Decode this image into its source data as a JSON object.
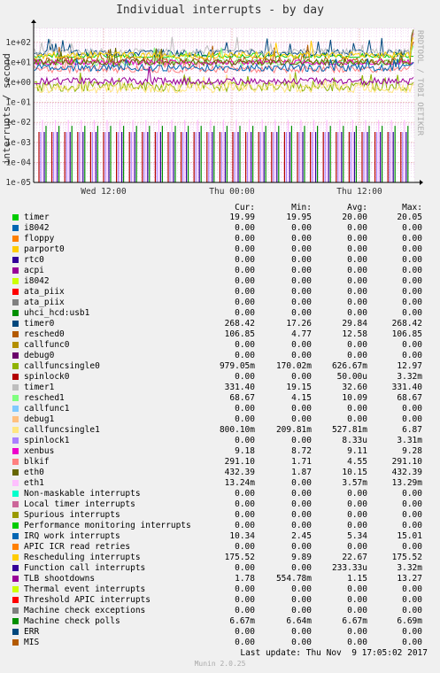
{
  "title": "Individual interrupts - by day",
  "watermark": "RRDTOOL / TOBI OETIKER",
  "footer": {
    "last_update_label": "Last update:",
    "last_update_value": "Thu Nov  9 17:05:02 2017",
    "version": "Munin 2.0.25"
  },
  "legend_header": {
    "cur": "Cur:",
    "min": "Min:",
    "avg": "Avg:",
    "max": "Max:"
  },
  "chart_data": {
    "type": "line",
    "title": "Individual interrupts - by day",
    "ylabel": "interrupts / second",
    "xlabel": "",
    "y_scale": "log",
    "ylim": [
      1e-05,
      500
    ],
    "y_ticks": [
      "1e-05",
      "1e-04",
      "1e-03",
      "1e-02",
      "1e-01",
      "1e+00",
      "1e+01",
      "1e+02"
    ],
    "x_ticks": [
      "Wed 12:00",
      "Thu 00:00",
      "Thu 12:00"
    ],
    "grid": true,
    "series": [
      {
        "name": "timer",
        "color": "#00cc00",
        "cur": "19.99",
        "min": "19.95",
        "avg": "20.00",
        "max": "20.05"
      },
      {
        "name": "i8042",
        "color": "#0066b3",
        "cur": "0.00",
        "min": "0.00",
        "avg": "0.00",
        "max": "0.00"
      },
      {
        "name": "floppy",
        "color": "#ff8000",
        "cur": "0.00",
        "min": "0.00",
        "avg": "0.00",
        "max": "0.00"
      },
      {
        "name": "parport0",
        "color": "#ffcc00",
        "cur": "0.00",
        "min": "0.00",
        "avg": "0.00",
        "max": "0.00"
      },
      {
        "name": "rtc0",
        "color": "#330099",
        "cur": "0.00",
        "min": "0.00",
        "avg": "0.00",
        "max": "0.00"
      },
      {
        "name": "acpi",
        "color": "#990099",
        "cur": "0.00",
        "min": "0.00",
        "avg": "0.00",
        "max": "0.00"
      },
      {
        "name": "i8042",
        "color": "#ccff00",
        "cur": "0.00",
        "min": "0.00",
        "avg": "0.00",
        "max": "0.00"
      },
      {
        "name": "ata_piix",
        "color": "#ff0000",
        "cur": "0.00",
        "min": "0.00",
        "avg": "0.00",
        "max": "0.00"
      },
      {
        "name": "ata_piix",
        "color": "#808080",
        "cur": "0.00",
        "min": "0.00",
        "avg": "0.00",
        "max": "0.00"
      },
      {
        "name": "uhci_hcd:usb1",
        "color": "#008f00",
        "cur": "0.00",
        "min": "0.00",
        "avg": "0.00",
        "max": "0.00"
      },
      {
        "name": "timer0",
        "color": "#00487d",
        "cur": "268.42",
        "min": "17.26",
        "avg": "29.84",
        "max": "268.42"
      },
      {
        "name": "resched0",
        "color": "#b35a00",
        "cur": "106.85",
        "min": "4.77",
        "avg": "12.58",
        "max": "106.85"
      },
      {
        "name": "callfunc0",
        "color": "#b38f00",
        "cur": "0.00",
        "min": "0.00",
        "avg": "0.00",
        "max": "0.00"
      },
      {
        "name": "debug0",
        "color": "#6b006b",
        "cur": "0.00",
        "min": "0.00",
        "avg": "0.00",
        "max": "0.00"
      },
      {
        "name": "callfuncsingle0",
        "color": "#8fb300",
        "cur": "979.05m",
        "min": "170.02m",
        "avg": "626.67m",
        "max": "12.97"
      },
      {
        "name": "spinlock0",
        "color": "#b30000",
        "cur": "0.00",
        "min": "0.00",
        "avg": "50.00u",
        "max": "3.32m"
      },
      {
        "name": "timer1",
        "color": "#bebebe",
        "cur": "331.40",
        "min": "19.15",
        "avg": "32.60",
        "max": "331.40"
      },
      {
        "name": "resched1",
        "color": "#80ff80",
        "cur": "68.67",
        "min": "4.15",
        "avg": "10.09",
        "max": "68.67"
      },
      {
        "name": "callfunc1",
        "color": "#80c9ff",
        "cur": "0.00",
        "min": "0.00",
        "avg": "0.00",
        "max": "0.00"
      },
      {
        "name": "debug1",
        "color": "#ffc080",
        "cur": "0.00",
        "min": "0.00",
        "avg": "0.00",
        "max": "0.00"
      },
      {
        "name": "callfuncsingle1",
        "color": "#ffe680",
        "cur": "800.10m",
        "min": "209.81m",
        "avg": "527.81m",
        "max": "6.87"
      },
      {
        "name": "spinlock1",
        "color": "#aa80ff",
        "cur": "0.00",
        "min": "0.00",
        "avg": "8.33u",
        "max": "3.31m"
      },
      {
        "name": "xenbus",
        "color": "#ee00cc",
        "cur": "9.18",
        "min": "8.72",
        "avg": "9.11",
        "max": "9.28"
      },
      {
        "name": "blkif",
        "color": "#ff8080",
        "cur": "291.10",
        "min": "1.71",
        "avg": "4.55",
        "max": "291.10"
      },
      {
        "name": "eth0",
        "color": "#666600",
        "cur": "432.39",
        "min": "1.87",
        "avg": "10.15",
        "max": "432.39"
      },
      {
        "name": "eth1",
        "color": "#ffbfff",
        "cur": "13.24m",
        "min": "0.00",
        "avg": "3.57m",
        "max": "13.29m"
      },
      {
        "name": "Non-maskable interrupts",
        "color": "#00ffcc",
        "cur": "0.00",
        "min": "0.00",
        "avg": "0.00",
        "max": "0.00"
      },
      {
        "name": "Local timer interrupts",
        "color": "#cc6699",
        "cur": "0.00",
        "min": "0.00",
        "avg": "0.00",
        "max": "0.00"
      },
      {
        "name": "Spurious interrupts",
        "color": "#999900",
        "cur": "0.00",
        "min": "0.00",
        "avg": "0.00",
        "max": "0.00"
      },
      {
        "name": "Performance monitoring interrupts",
        "color": "#00cc00",
        "cur": "0.00",
        "min": "0.00",
        "avg": "0.00",
        "max": "0.00"
      },
      {
        "name": "IRQ work interrupts",
        "color": "#0066b3",
        "cur": "10.34",
        "min": "2.45",
        "avg": "5.34",
        "max": "15.01"
      },
      {
        "name": "APIC ICR read retries",
        "color": "#ff8000",
        "cur": "0.00",
        "min": "0.00",
        "avg": "0.00",
        "max": "0.00"
      },
      {
        "name": "Rescheduling interrupts",
        "color": "#ffcc00",
        "cur": "175.52",
        "min": "9.89",
        "avg": "22.67",
        "max": "175.52"
      },
      {
        "name": "Function call interrupts",
        "color": "#330099",
        "cur": "0.00",
        "min": "0.00",
        "avg": "233.33u",
        "max": "3.32m"
      },
      {
        "name": "TLB shootdowns",
        "color": "#990099",
        "cur": "1.78",
        "min": "554.78m",
        "avg": "1.15",
        "max": "13.27"
      },
      {
        "name": "Thermal event interrupts",
        "color": "#ccff00",
        "cur": "0.00",
        "min": "0.00",
        "avg": "0.00",
        "max": "0.00"
      },
      {
        "name": "Threshold APIC interrupts",
        "color": "#ff0000",
        "cur": "0.00",
        "min": "0.00",
        "avg": "0.00",
        "max": "0.00"
      },
      {
        "name": "Machine check exceptions",
        "color": "#808080",
        "cur": "0.00",
        "min": "0.00",
        "avg": "0.00",
        "max": "0.00"
      },
      {
        "name": "Machine check polls",
        "color": "#008f00",
        "cur": "6.67m",
        "min": "6.64m",
        "avg": "6.67m",
        "max": "6.69m"
      },
      {
        "name": "ERR",
        "color": "#00487d",
        "cur": "0.00",
        "min": "0.00",
        "avg": "0.00",
        "max": "0.00"
      },
      {
        "name": "MIS",
        "color": "#b35a00",
        "cur": "0.00",
        "min": "0.00",
        "avg": "0.00",
        "max": "0.00"
      }
    ]
  }
}
